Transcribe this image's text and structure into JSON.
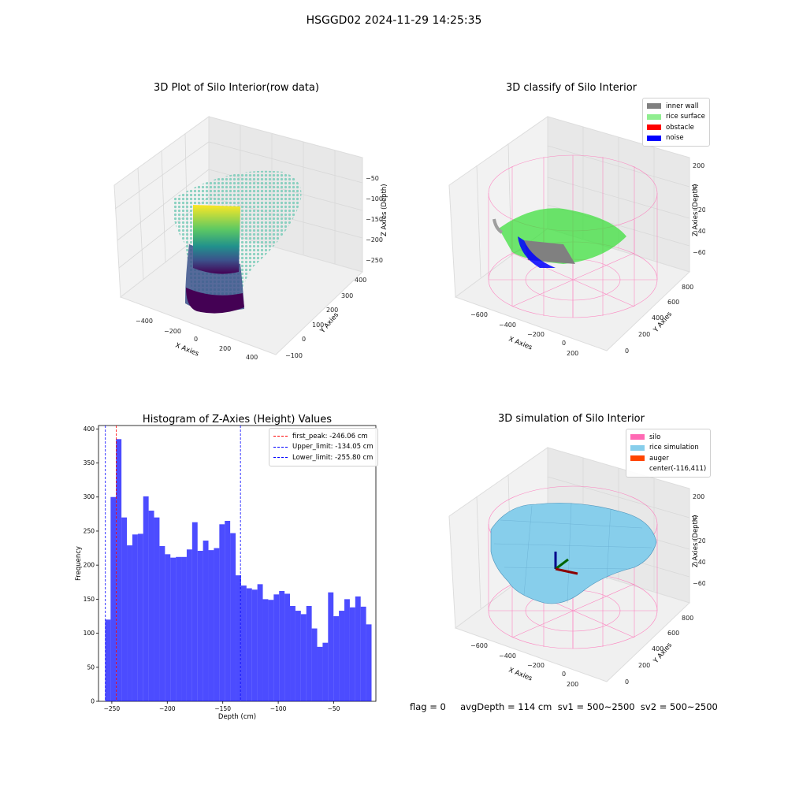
{
  "suptitle": "HSGGD02 2024-11-29 14:25:35",
  "plots": {
    "raw": {
      "title": "3D Plot of Silo Interior(row data)",
      "xlabel": "X Axies",
      "ylabel": "Y Axies",
      "zlabel": "Z Axies (Depth)",
      "xticks": [
        "−400",
        "−200",
        "0",
        "200",
        "400"
      ],
      "yticks": [
        "−100",
        "0",
        "100",
        "200",
        "300",
        "400"
      ],
      "zticks": [
        "−50",
        "−100",
        "−150",
        "−200",
        "−250"
      ]
    },
    "classify": {
      "title": "3D classify of Silo Interior",
      "xlabel": "X Axies",
      "ylabel": "Y Axies",
      "zlabel": "Z Axies (Depth)",
      "xticks": [
        "−600",
        "−400",
        "−200",
        "0",
        "200"
      ],
      "yticks": [
        "0",
        "200",
        "400",
        "600",
        "800"
      ],
      "zticks": [
        "200",
        "0",
        "−200",
        "−400",
        "−600"
      ],
      "legend": [
        {
          "label": "inner wall",
          "color": "#808080"
        },
        {
          "label": "rice surface",
          "color": "#90ee90"
        },
        {
          "label": "obstacle",
          "color": "#ff0000"
        },
        {
          "label": "noise",
          "color": "#0000ff"
        }
      ]
    },
    "simulation": {
      "title": "3D simulation of Silo Interior",
      "xlabel": "X Axies",
      "ylabel": "Y Axies",
      "zlabel": "Z Axies (Depth)",
      "xticks": [
        "−600",
        "−400",
        "−200",
        "0",
        "200"
      ],
      "yticks": [
        "0",
        "200",
        "400",
        "600",
        "800"
      ],
      "zticks": [
        "200",
        "0",
        "−200",
        "−400",
        "−600"
      ],
      "legend": [
        {
          "label": "silo",
          "color": "#ff69b4"
        },
        {
          "label": "rice simulation",
          "color": "#87ceeb"
        },
        {
          "label": "auger",
          "color": "#ff4500"
        },
        {
          "label": "center(-116,411)",
          "color": ""
        }
      ]
    }
  },
  "status_line": "flag = 0     avgDepth = 114 cm  sv1 = 500~2500  sv2 = 500~2500",
  "chart_data": {
    "type": "bar",
    "title": "Histogram of Z-Axies (Height) Values",
    "xlabel": "Depth (cm)",
    "ylabel": "Frequency",
    "xlim": [
      -262,
      -12
    ],
    "ylim": [
      0,
      405
    ],
    "xticks": [
      -250,
      -200,
      -150,
      -100,
      -50
    ],
    "yticks": [
      0,
      50,
      100,
      150,
      200,
      250,
      300,
      350,
      400
    ],
    "bin_start": -256,
    "bin_width": 4.9,
    "values": [
      120,
      300,
      385,
      270,
      229,
      245,
      246,
      301,
      280,
      270,
      228,
      216,
      211,
      212,
      212,
      223,
      263,
      221,
      236,
      222,
      225,
      260,
      265,
      247,
      185,
      170,
      166,
      164,
      172,
      150,
      149,
      157,
      162,
      158,
      140,
      133,
      128,
      140,
      107,
      80,
      86,
      160,
      125,
      133,
      150,
      138,
      154,
      139,
      113
    ],
    "bar_color": "#0000ff",
    "lines": [
      {
        "label": "first_peak: -246.06 cm",
        "x": -246.06,
        "color": "#ff0000"
      },
      {
        "label": "Upper_limit: -134.05 cm",
        "x": -134.05,
        "color": "#0000ff"
      },
      {
        "label": "Lower_limit: -255.80 cm",
        "x": -255.8,
        "color": "#0000ff"
      }
    ],
    "legend_position": "upper right"
  }
}
